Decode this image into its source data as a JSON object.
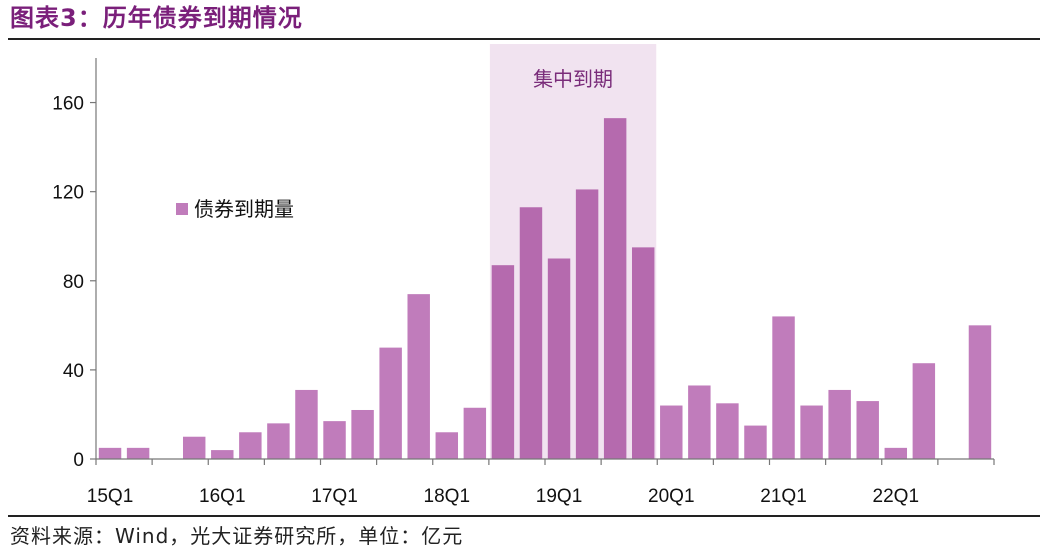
{
  "title": "图表3：历年债券到期情况",
  "source": "资料来源：Wind，光大证券研究所，单位：亿元",
  "colors": {
    "bar": "#c07cbb",
    "highlight_bar": "#b56aae",
    "band": "#f1e3f0",
    "title": "#7a1f7a"
  },
  "chart_data": {
    "type": "bar",
    "title": "图表3：历年债券到期情况",
    "xlabel": "",
    "ylabel": "",
    "ylim": [
      0,
      180
    ],
    "yticks": [
      0,
      40,
      80,
      120,
      160
    ],
    "x_tick_labels": [
      "15Q1",
      "16Q1",
      "17Q1",
      "18Q1",
      "19Q1",
      "20Q1",
      "21Q1",
      "22Q1"
    ],
    "categories": [
      "15Q1",
      "15Q2",
      "15Q3",
      "15Q4",
      "16Q1",
      "16Q2",
      "16Q3",
      "16Q4",
      "17Q1",
      "17Q2",
      "17Q3",
      "17Q4",
      "18Q1",
      "18Q2",
      "18Q3",
      "18Q4",
      "19Q1",
      "19Q2",
      "19Q3",
      "19Q4",
      "20Q1",
      "20Q2",
      "20Q3",
      "20Q4",
      "21Q1",
      "21Q2",
      "21Q3",
      "21Q4",
      "22Q1",
      "22Q2",
      "22Q3",
      "22Q4"
    ],
    "series": [
      {
        "name": "债券到期量",
        "values": [
          5,
          5,
          0,
          10,
          4,
          12,
          16,
          31,
          17,
          22,
          50,
          74,
          12,
          23,
          87,
          113,
          90,
          121,
          153,
          95,
          24,
          33,
          25,
          15,
          64,
          24,
          31,
          26,
          5,
          43,
          0,
          60
        ]
      }
    ],
    "legend": {
      "position": "upper-left",
      "entries": [
        "债券到期量"
      ]
    },
    "grid": false,
    "annotations": [
      {
        "text": "集中到期",
        "from_category": "18Q3",
        "to_category": "19Q4"
      }
    ]
  }
}
